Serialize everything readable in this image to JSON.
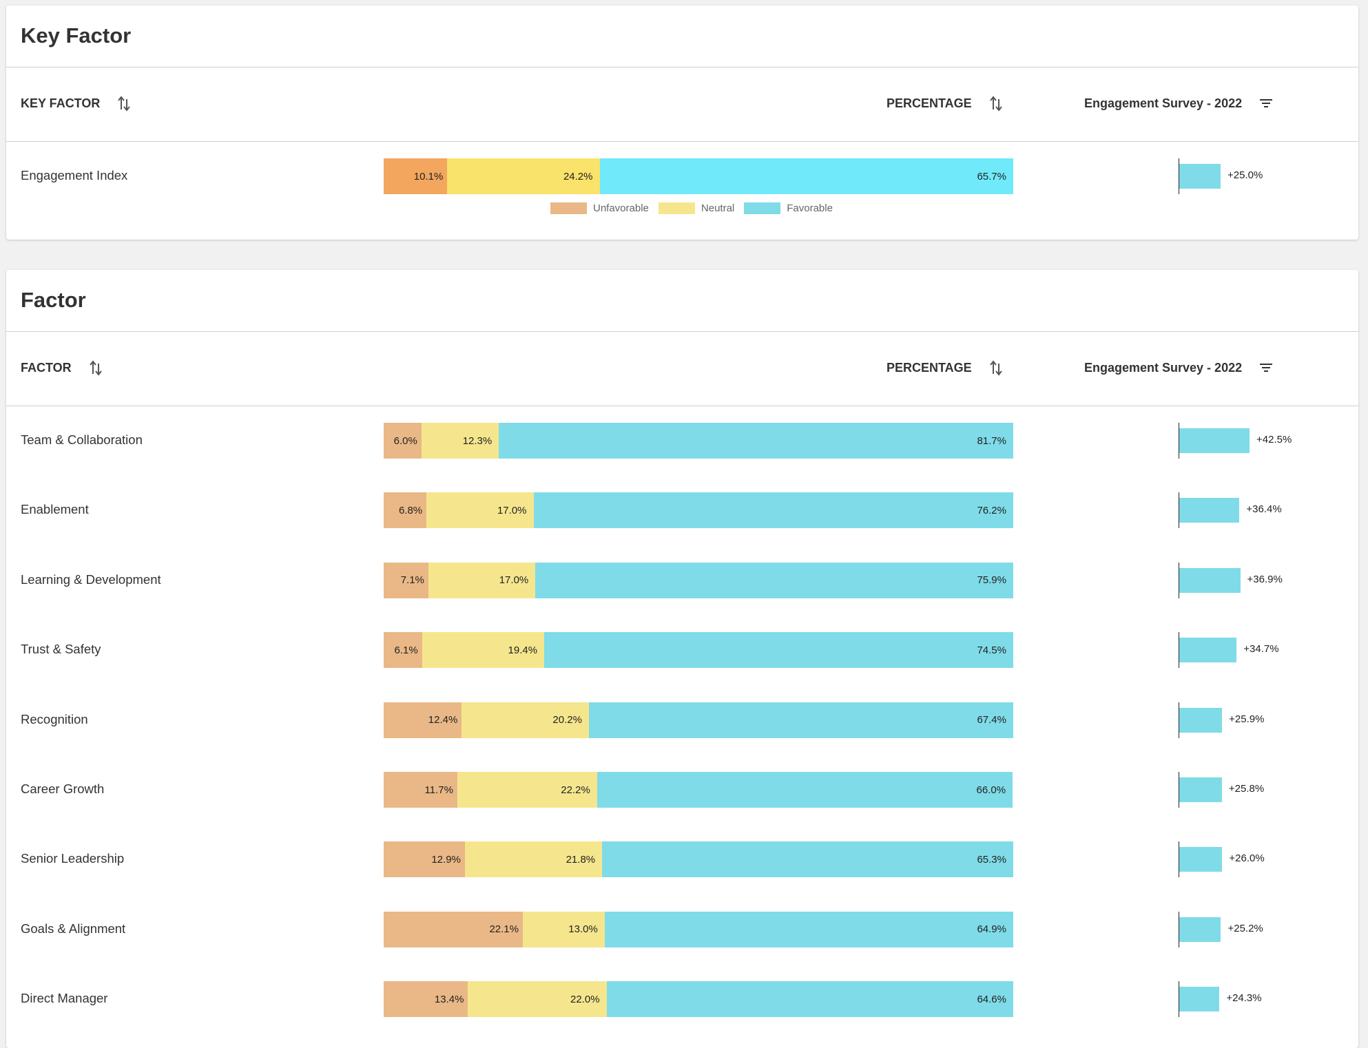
{
  "colors": {
    "unfavorable": "#e9b886",
    "neutral": "#f5e68d",
    "favorable": "#7fdbe8",
    "key_unfavorable": "#f2a65e",
    "key_neutral": "#f9e36a",
    "key_favorable": "#70e9fb",
    "delta_bar": "#7fdbe8"
  },
  "key_factor_card": {
    "title": "Key Factor",
    "headers": {
      "name": "KEY FACTOR",
      "percentage": "PERCENTAGE",
      "survey": "Engagement Survey - 2022"
    },
    "legend": [
      "Unfavorable",
      "Neutral",
      "Favorable"
    ],
    "rows": [
      {
        "name": "Engagement Index",
        "unfavorable": 10.1,
        "neutral": 24.2,
        "favorable": 65.7,
        "unf_label": "10.1%",
        "neu_label": "24.2%",
        "fav_label": "65.7%",
        "delta": 25.0,
        "delta_label": "+25.0%"
      }
    ]
  },
  "factor_card": {
    "title": "Factor",
    "headers": {
      "name": "FACTOR",
      "percentage": "PERCENTAGE",
      "survey": "Engagement Survey - 2022"
    },
    "rows": [
      {
        "name": "Team & Collaboration",
        "unfavorable": 6.0,
        "neutral": 12.3,
        "favorable": 81.7,
        "unf_label": "6.0%",
        "neu_label": "12.3%",
        "fav_label": "81.7%",
        "delta": 42.5,
        "delta_label": "+42.5%"
      },
      {
        "name": "Enablement",
        "unfavorable": 6.8,
        "neutral": 17.0,
        "favorable": 76.2,
        "unf_label": "6.8%",
        "neu_label": "17.0%",
        "fav_label": "76.2%",
        "delta": 36.4,
        "delta_label": "+36.4%"
      },
      {
        "name": "Learning & Development",
        "unfavorable": 7.1,
        "neutral": 17.0,
        "favorable": 75.9,
        "unf_label": "7.1%",
        "neu_label": "17.0%",
        "fav_label": "75.9%",
        "delta": 36.9,
        "delta_label": "+36.9%"
      },
      {
        "name": "Trust & Safety",
        "unfavorable": 6.1,
        "neutral": 19.4,
        "favorable": 74.5,
        "unf_label": "6.1%",
        "neu_label": "19.4%",
        "fav_label": "74.5%",
        "delta": 34.7,
        "delta_label": "+34.7%"
      },
      {
        "name": "Recognition",
        "unfavorable": 12.4,
        "neutral": 20.2,
        "favorable": 67.4,
        "unf_label": "12.4%",
        "neu_label": "20.2%",
        "fav_label": "67.4%",
        "delta": 25.9,
        "delta_label": "+25.9%"
      },
      {
        "name": "Career Growth",
        "unfavorable": 11.7,
        "neutral": 22.2,
        "favorable": 66.0,
        "unf_label": "11.7%",
        "neu_label": "22.2%",
        "fav_label": "66.0%",
        "delta": 25.8,
        "delta_label": "+25.8%"
      },
      {
        "name": "Senior Leadership",
        "unfavorable": 12.9,
        "neutral": 21.8,
        "favorable": 65.3,
        "unf_label": "12.9%",
        "neu_label": "21.8%",
        "fav_label": "65.3%",
        "delta": 26.0,
        "delta_label": "+26.0%"
      },
      {
        "name": "Goals & Alignment",
        "unfavorable": 22.1,
        "neutral": 13.0,
        "favorable": 64.9,
        "unf_label": "22.1%",
        "neu_label": "13.0%",
        "fav_label": "64.9%",
        "delta": 25.2,
        "delta_label": "+25.2%"
      },
      {
        "name": "Direct Manager",
        "unfavorable": 13.4,
        "neutral": 22.0,
        "favorable": 64.6,
        "unf_label": "13.4%",
        "neu_label": "22.0%",
        "fav_label": "64.6%",
        "delta": 24.3,
        "delta_label": "+24.3%"
      }
    ]
  }
}
